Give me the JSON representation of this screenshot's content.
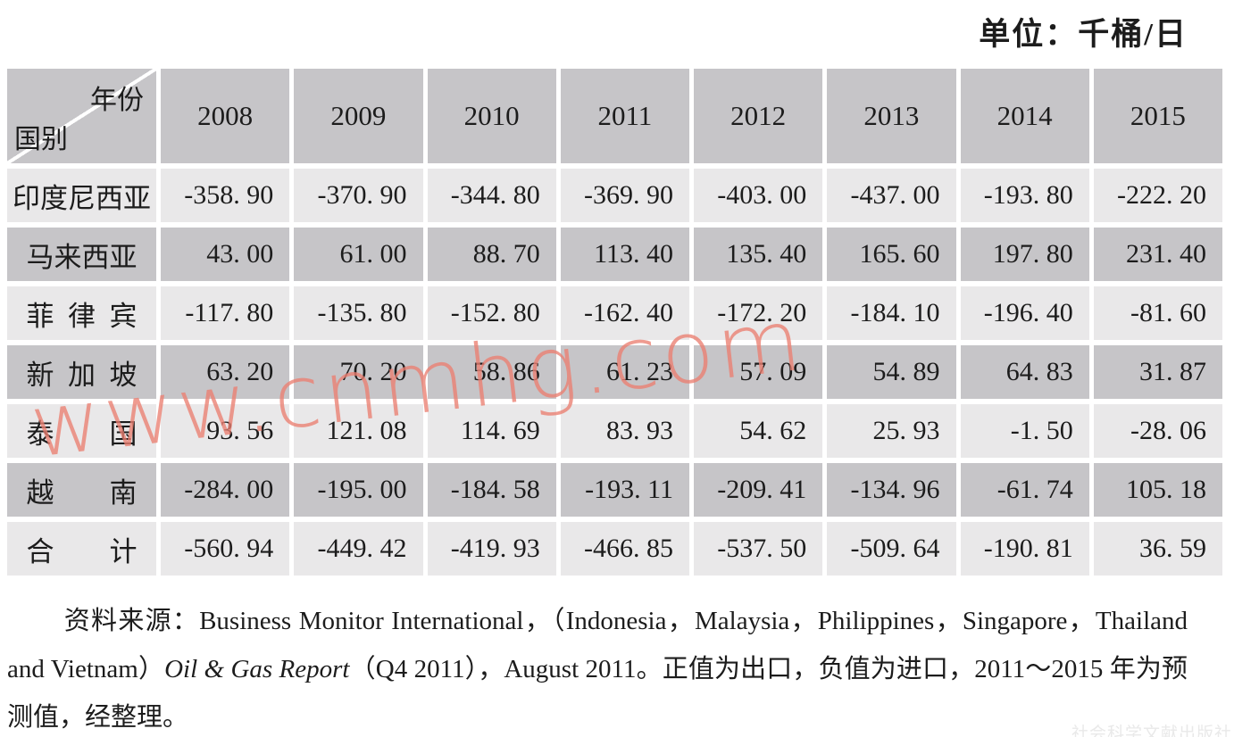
{
  "unit_label": "单位：千桶/日",
  "table": {
    "corner": {
      "top_label": "年份",
      "bottom_label": "国别"
    },
    "years": [
      "2008",
      "2009",
      "2010",
      "2011",
      "2012",
      "2013",
      "2014",
      "2015"
    ],
    "rows": [
      {
        "country": "印度尼西亚",
        "values": [
          "-358. 90",
          "-370. 90",
          "-344. 80",
          "-369. 90",
          "-403. 00",
          "-437. 00",
          "-193. 80",
          "-222. 20"
        ]
      },
      {
        "country": "马来西亚",
        "values": [
          "43. 00",
          "61. 00",
          "88. 70",
          "113. 40",
          "135. 40",
          "165. 60",
          "197. 80",
          "231. 40"
        ]
      },
      {
        "country": "菲 律 宾",
        "values": [
          "-117. 80",
          "-135. 80",
          "-152. 80",
          "-162. 40",
          "-172. 20",
          "-184. 10",
          "-196. 40",
          "-81. 60"
        ]
      },
      {
        "country": "新 加 坡",
        "values": [
          "63. 20",
          "70. 20",
          "58. 86",
          "61. 23",
          "57. 09",
          "54. 89",
          "64. 83",
          "31. 87"
        ]
      },
      {
        "country": "泰　　国",
        "values": [
          "93. 56",
          "121. 08",
          "114. 69",
          "83. 93",
          "54. 62",
          "25. 93",
          "-1. 50",
          "-28. 06"
        ]
      },
      {
        "country": "越　　南",
        "values": [
          "-284. 00",
          "-195. 00",
          "-184. 58",
          "-193. 11",
          "-209. 41",
          "-134. 96",
          "-61. 74",
          "105. 18"
        ]
      },
      {
        "country": "合　　计",
        "values": [
          "-560. 94",
          "-449. 42",
          "-419. 93",
          "-466. 85",
          "-537. 50",
          "-509. 64",
          "-190. 81",
          "36. 59"
        ]
      }
    ]
  },
  "source_note": {
    "part1": "资料来源：Business Monitor International，（Indonesia，Malaysia，Philippines，Singapore，Thailand and Vietnam）",
    "italic": "Oil & Gas Report",
    "part2": "（Q4 2011），August 2011。正值为出口，负值为进口，2011～2015 年为预测值，经整理。"
  },
  "watermark_text": "www.cnmhg.com",
  "publisher_mark": "社会科学文献出版社",
  "colors": {
    "row_light": "#e9e8e9",
    "row_dark": "#c6c5c8",
    "watermark_red": "#eb7f71",
    "text": "#1c1c1c"
  }
}
